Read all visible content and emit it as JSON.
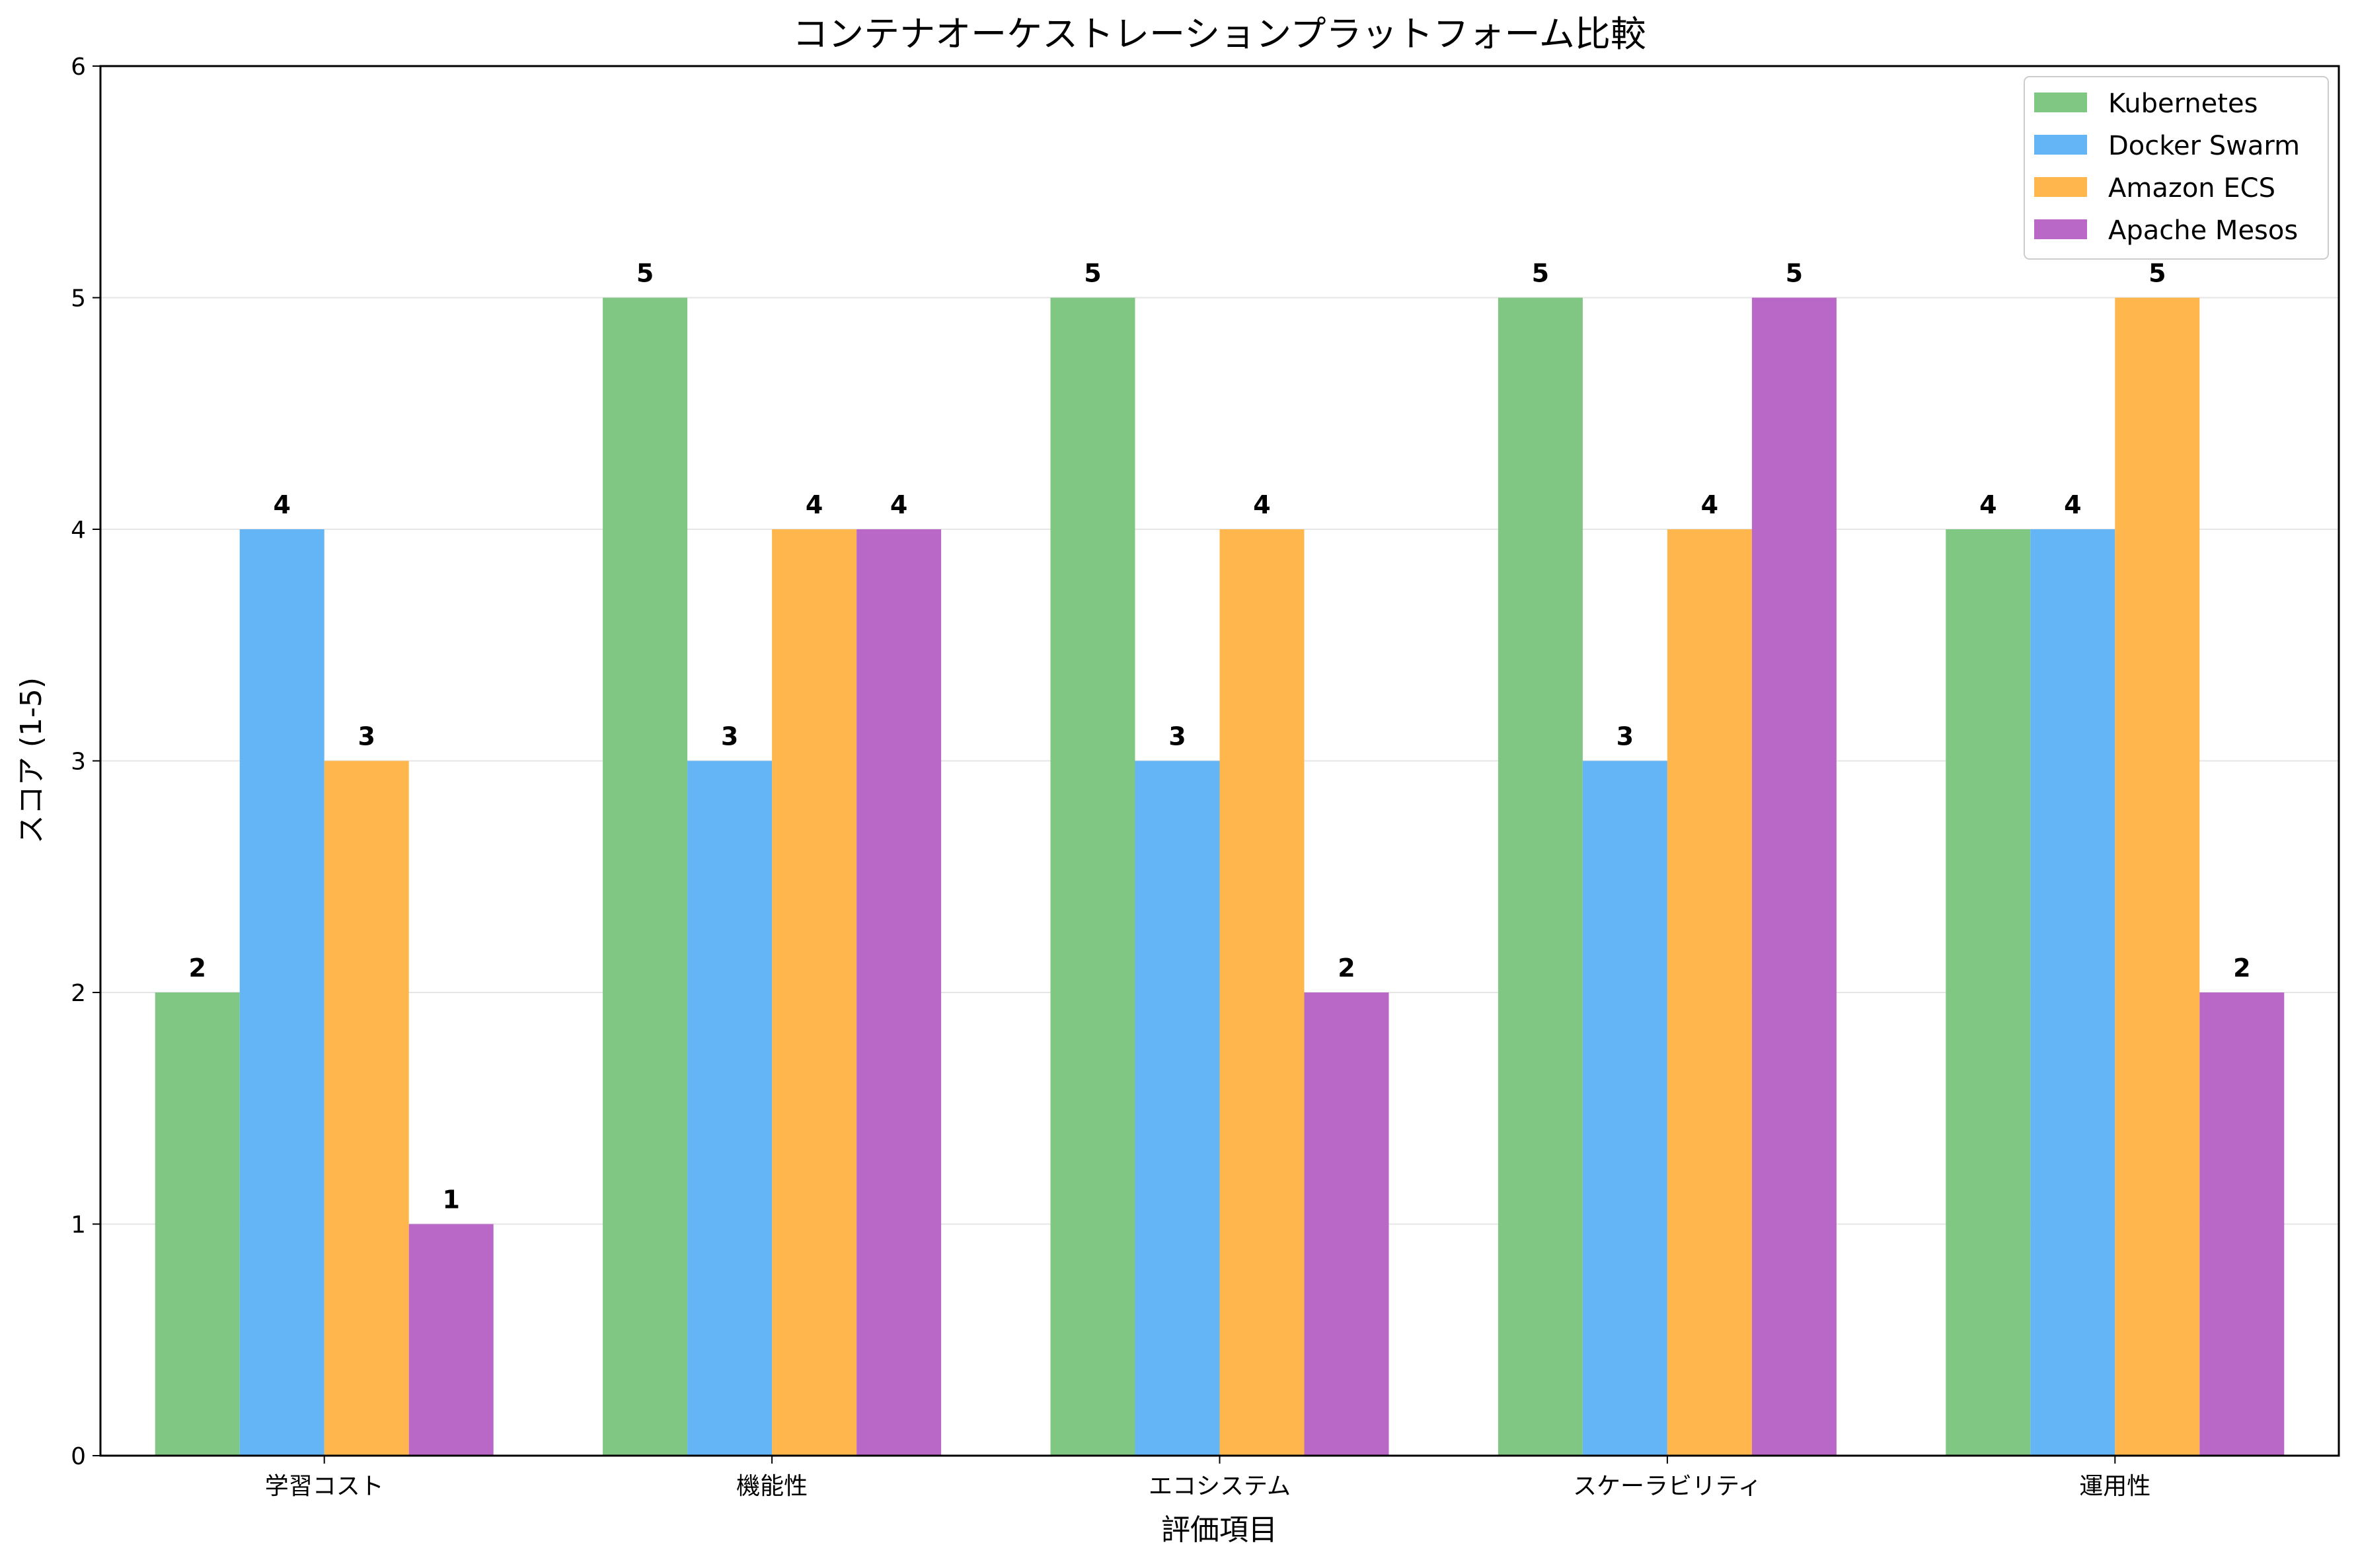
{
  "chart_data": {
    "type": "bar",
    "title": "コンテナオーケストレーションプラットフォーム比較",
    "xlabel": "評価項目",
    "ylabel": "スコア (1-5)",
    "categories": [
      "学習コスト",
      "機能性",
      "エコシステム",
      "スケーラビリティ",
      "運用性"
    ],
    "ylim": [
      0,
      6
    ],
    "yticks": [
      "0",
      "1",
      "2",
      "3",
      "4",
      "5",
      "6"
    ],
    "grid": "y",
    "legend_position": "top-right",
    "series": [
      {
        "name": "Kubernetes",
        "color": "#81c784",
        "values": [
          2,
          5,
          5,
          5,
          4
        ]
      },
      {
        "name": "Docker Swarm",
        "color": "#64b5f6",
        "values": [
          4,
          3,
          3,
          3,
          4
        ]
      },
      {
        "name": "Amazon ECS",
        "color": "#ffb74d",
        "values": [
          3,
          4,
          4,
          4,
          5
        ]
      },
      {
        "name": "Apache Mesos",
        "color": "#ba68c8",
        "values": [
          1,
          4,
          2,
          5,
          2
        ]
      }
    ]
  }
}
